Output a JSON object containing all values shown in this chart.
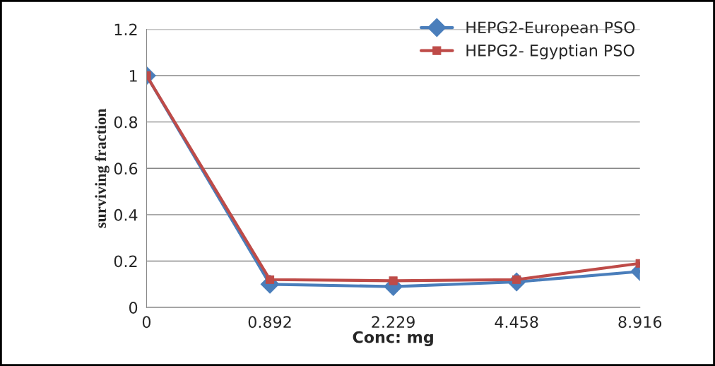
{
  "chart_data": {
    "type": "line",
    "categories": [
      "0",
      "0.892",
      "2.229",
      "4.458",
      "8.916"
    ],
    "xlabel": "Conc: mg",
    "ylabel": "surviving fraction",
    "series": [
      {
        "name": "HEPG2-European PSO",
        "color": "#4a7ebb",
        "marker": "diamond",
        "values": [
          1,
          0.1,
          0.09,
          0.11,
          0.155
        ]
      },
      {
        "name": "HEPG2- Egyptian PSO",
        "color": "#be4b48",
        "marker": "square",
        "values": [
          1,
          0.12,
          0.115,
          0.12,
          0.19
        ]
      }
    ],
    "ylim": [
      0,
      1.2
    ],
    "yticks": [
      0,
      0.2,
      0.4,
      0.6,
      0.8,
      1,
      1.2
    ],
    "grid": "y",
    "legend": "top right"
  }
}
